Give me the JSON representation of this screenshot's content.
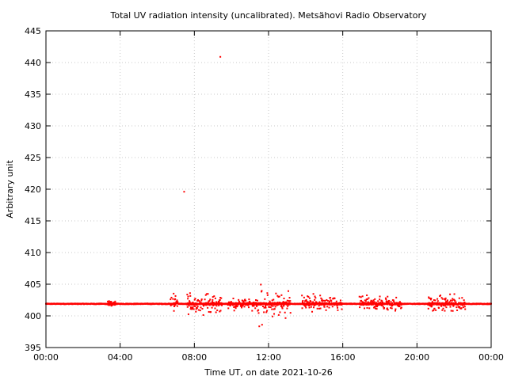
{
  "chart_data": {
    "type": "scatter",
    "title": "Total UV radiation intensity (uncalibrated). Metsähovi Radio Observatory",
    "xlabel": "Time UT, on date 2021-10-26",
    "ylabel": "Arbitrary unit",
    "xlim_hours": [
      0,
      24
    ],
    "ylim": [
      395,
      445
    ],
    "x_ticks": [
      {
        "hours": 0,
        "label": "00:00"
      },
      {
        "hours": 4,
        "label": "04:00"
      },
      {
        "hours": 8,
        "label": "08:00"
      },
      {
        "hours": 12,
        "label": "12:00"
      },
      {
        "hours": 16,
        "label": "16:00"
      },
      {
        "hours": 20,
        "label": "20:00"
      },
      {
        "hours": 24,
        "label": "00:00"
      }
    ],
    "y_ticks": [
      395,
      400,
      405,
      410,
      415,
      420,
      425,
      430,
      435,
      440,
      445
    ],
    "grid": true,
    "marker_color": "#ff0000",
    "baseline_value": 401.9,
    "outliers": [
      {
        "hours": 7.45,
        "value": 419.6
      },
      {
        "hours": 9.4,
        "value": 440.9
      }
    ],
    "noise_segments": [
      {
        "start_hours": 3.3,
        "end_hours": 3.8,
        "amplitude": 0.4
      },
      {
        "start_hours": 6.7,
        "end_hours": 7.1,
        "amplitude": 1.5
      },
      {
        "start_hours": 7.6,
        "end_hours": 9.5,
        "amplitude": 1.6
      },
      {
        "start_hours": 9.8,
        "end_hours": 11.4,
        "amplitude": 0.9
      },
      {
        "start_hours": 11.4,
        "end_hours": 11.7,
        "amplitude": 3.5
      },
      {
        "start_hours": 11.7,
        "end_hours": 13.2,
        "amplitude": 2.0
      },
      {
        "start_hours": 13.8,
        "end_hours": 16.0,
        "amplitude": 1.3
      },
      {
        "start_hours": 16.9,
        "end_hours": 19.2,
        "amplitude": 1.2
      },
      {
        "start_hours": 20.6,
        "end_hours": 22.6,
        "amplitude": 1.3
      }
    ]
  }
}
